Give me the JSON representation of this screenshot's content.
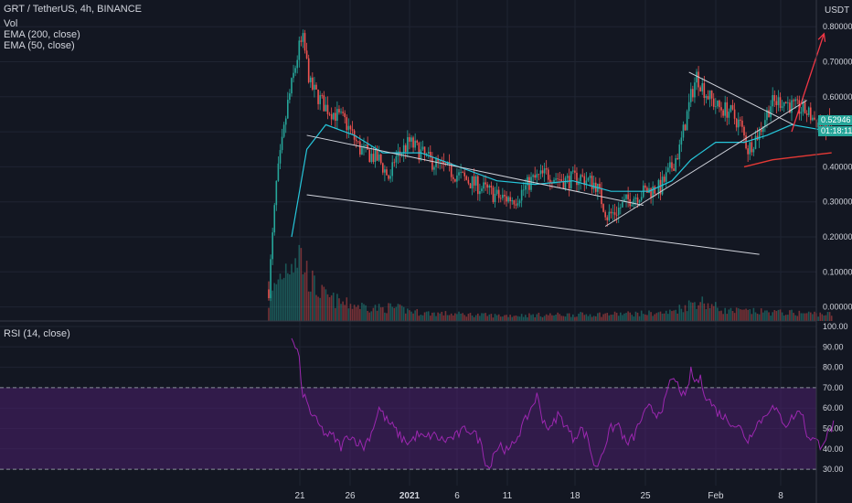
{
  "header": {
    "symbol_line": "GRT / TetherUS, 4h, BINANCE",
    "indicators": [
      "Vol",
      "EMA (200, close)",
      "EMA (50, close)"
    ],
    "currency": "USDT"
  },
  "price_tags": {
    "last_price": "0.52946",
    "countdown": "01:18:11"
  },
  "rsi_panel": {
    "label": "RSI (14, close)"
  },
  "colors": {
    "background": "#131722",
    "up": "#26a69a",
    "down": "#ef5350",
    "ema50": "#26c6da",
    "ema200": "#e53935",
    "rsi": "#9c27b0",
    "rsi_band": "#4a1f6b",
    "trendline": "#d1d4dc",
    "arrow": "#f23645"
  },
  "chart_data": [
    {
      "type": "candlestick",
      "title": "GRT / TetherUS, 4h, BINANCE",
      "x_ticks": [
        "21",
        "26",
        "2021",
        "6",
        "11",
        "18",
        "25",
        "Feb",
        "8"
      ],
      "y_ticks": [
        "0.80000",
        "0.70000",
        "0.60000",
        "0.50000",
        "0.40000",
        "0.30000",
        "0.20000",
        "0.10000",
        "0.00000"
      ],
      "ylim": [
        -0.03,
        0.85
      ],
      "grid": true,
      "price_path": [
        [
          0,
          0.05
        ],
        [
          4,
          0.35
        ],
        [
          10,
          0.58
        ],
        [
          16,
          0.74
        ],
        [
          18,
          0.76
        ],
        [
          22,
          0.63
        ],
        [
          30,
          0.57
        ],
        [
          40,
          0.53
        ],
        [
          48,
          0.45
        ],
        [
          58,
          0.42
        ],
        [
          64,
          0.36
        ],
        [
          66,
          0.42
        ],
        [
          74,
          0.47
        ],
        [
          84,
          0.42
        ],
        [
          98,
          0.38
        ],
        [
          112,
          0.34
        ],
        [
          122,
          0.31
        ],
        [
          130,
          0.31
        ],
        [
          138,
          0.36
        ],
        [
          146,
          0.38
        ],
        [
          156,
          0.36
        ],
        [
          164,
          0.37
        ],
        [
          172,
          0.35
        ],
        [
          178,
          0.26
        ],
        [
          182,
          0.27
        ],
        [
          190,
          0.31
        ],
        [
          198,
          0.33
        ],
        [
          206,
          0.34
        ],
        [
          212,
          0.4
        ],
        [
          216,
          0.45
        ],
        [
          222,
          0.6
        ],
        [
          225,
          0.66
        ],
        [
          230,
          0.61
        ],
        [
          236,
          0.57
        ],
        [
          242,
          0.56
        ],
        [
          248,
          0.52
        ],
        [
          252,
          0.45
        ],
        [
          258,
          0.5
        ],
        [
          264,
          0.58
        ],
        [
          270,
          0.59
        ],
        [
          276,
          0.57
        ],
        [
          282,
          0.56
        ],
        [
          288,
          0.53
        ],
        [
          292,
          0.51
        ],
        [
          296,
          0.53
        ]
      ],
      "ema50": [
        [
          12,
          0.2
        ],
        [
          20,
          0.45
        ],
        [
          30,
          0.52
        ],
        [
          45,
          0.49
        ],
        [
          60,
          0.44
        ],
        [
          80,
          0.44
        ],
        [
          100,
          0.4
        ],
        [
          120,
          0.36
        ],
        [
          140,
          0.35
        ],
        [
          160,
          0.36
        ],
        [
          180,
          0.33
        ],
        [
          200,
          0.33
        ],
        [
          212,
          0.36
        ],
        [
          222,
          0.42
        ],
        [
          235,
          0.47
        ],
        [
          250,
          0.47
        ],
        [
          262,
          0.49
        ],
        [
          275,
          0.52
        ],
        [
          286,
          0.51
        ],
        [
          296,
          0.5
        ]
      ],
      "ema200": [
        [
          250,
          0.4
        ],
        [
          265,
          0.42
        ],
        [
          280,
          0.43
        ],
        [
          296,
          0.44
        ]
      ],
      "volume_relative": [
        [
          0,
          0.25
        ],
        [
          4,
          0.55
        ],
        [
          8,
          0.75
        ],
        [
          12,
          0.95
        ],
        [
          16,
          1.0
        ],
        [
          20,
          0.7
        ],
        [
          24,
          0.5
        ],
        [
          30,
          0.35
        ],
        [
          40,
          0.25
        ],
        [
          60,
          0.18
        ],
        [
          64,
          0.2
        ],
        [
          80,
          0.12
        ],
        [
          120,
          0.08
        ],
        [
          180,
          0.1
        ],
        [
          210,
          0.12
        ],
        [
          222,
          0.25
        ],
        [
          226,
          0.3
        ],
        [
          240,
          0.15
        ],
        [
          296,
          0.1
        ]
      ],
      "annotations": [
        {
          "type": "trendline",
          "from": [
            20,
            0.49
          ],
          "to": [
            197,
            0.29
          ]
        },
        {
          "type": "trendline",
          "from": [
            20,
            0.32
          ],
          "to": [
            258,
            0.15
          ]
        },
        {
          "type": "trendline",
          "from": [
            177,
            0.23
          ],
          "to": [
            283,
            0.59
          ]
        },
        {
          "type": "trendline",
          "from": [
            221,
            0.67
          ],
          "to": [
            276,
            0.52
          ]
        },
        {
          "type": "arrow",
          "from": [
            275,
            0.5
          ],
          "to": [
            292,
            0.78
          ]
        }
      ]
    },
    {
      "type": "line",
      "title": "RSI (14, close)",
      "y_ticks": [
        "100.00",
        "90.00",
        "80.00",
        "70.00",
        "60.00",
        "50.00",
        "40.00",
        "30.00"
      ],
      "ylim": [
        26,
        100
      ],
      "bands": [
        30,
        70
      ],
      "rsi_path": [
        [
          12,
          93
        ],
        [
          14,
          90
        ],
        [
          16,
          85
        ],
        [
          17,
          70
        ],
        [
          19,
          65
        ],
        [
          22,
          58
        ],
        [
          26,
          52
        ],
        [
          30,
          47
        ],
        [
          34,
          46
        ],
        [
          38,
          41
        ],
        [
          42,
          47
        ],
        [
          46,
          44
        ],
        [
          50,
          41
        ],
        [
          54,
          48
        ],
        [
          58,
          60
        ],
        [
          62,
          54
        ],
        [
          66,
          50
        ],
        [
          70,
          45
        ],
        [
          74,
          43
        ],
        [
          78,
          47
        ],
        [
          82,
          45
        ],
        [
          86,
          47
        ],
        [
          92,
          44
        ],
        [
          98,
          46
        ],
        [
          104,
          50
        ],
        [
          108,
          48
        ],
        [
          112,
          42
        ],
        [
          114,
          34
        ],
        [
          116,
          30
        ],
        [
          118,
          38
        ],
        [
          122,
          42
        ],
        [
          126,
          38
        ],
        [
          130,
          45
        ],
        [
          134,
          52
        ],
        [
          138,
          60
        ],
        [
          141,
          66
        ],
        [
          144,
          55
        ],
        [
          148,
          49
        ],
        [
          152,
          57
        ],
        [
          156,
          52
        ],
        [
          160,
          45
        ],
        [
          164,
          50
        ],
        [
          168,
          45
        ],
        [
          170,
          36
        ],
        [
          172,
          30
        ],
        [
          176,
          40
        ],
        [
          180,
          50
        ],
        [
          184,
          52
        ],
        [
          188,
          42
        ],
        [
          192,
          46
        ],
        [
          196,
          55
        ],
        [
          200,
          60
        ],
        [
          204,
          57
        ],
        [
          208,
          62
        ],
        [
          212,
          75
        ],
        [
          216,
          70
        ],
        [
          219,
          64
        ],
        [
          222,
          78
        ],
        [
          224,
          73
        ],
        [
          227,
          74
        ],
        [
          230,
          66
        ],
        [
          236,
          58
        ],
        [
          242,
          54
        ],
        [
          248,
          50
        ],
        [
          252,
          44
        ],
        [
          256,
          52
        ],
        [
          260,
          55
        ],
        [
          264,
          61
        ],
        [
          268,
          57
        ],
        [
          272,
          52
        ],
        [
          276,
          56
        ],
        [
          280,
          59
        ],
        [
          283,
          47
        ],
        [
          286,
          45
        ],
        [
          290,
          42
        ],
        [
          294,
          47
        ],
        [
          297,
          52
        ]
      ]
    }
  ]
}
